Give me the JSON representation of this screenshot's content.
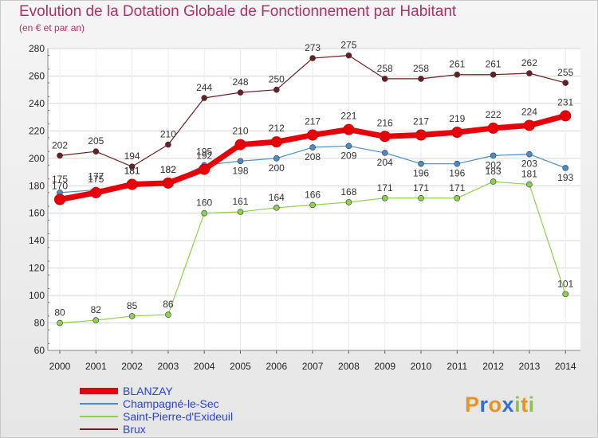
{
  "title": "Evolution de la Dotation Globale de Fonctionnement par Habitant",
  "subtitle": "(en € et par an)",
  "logo": {
    "text": "Proxiti",
    "letter_colors": [
      "#e8931f",
      "#2f6fd8",
      "#e8931f",
      "#2f6fd8",
      "#8ec73f",
      "#e8931f",
      "#8ec73f"
    ]
  },
  "chart_data": {
    "type": "line",
    "title": "Evolution de la Dotation Globale de Fonctionnement par Habitant",
    "subtitle": "(en € et par an)",
    "x": [
      "2000",
      "2001",
      "2002",
      "2003",
      "2004",
      "2005",
      "2006",
      "2007",
      "2008",
      "2009",
      "2010",
      "2011",
      "2012",
      "2013",
      "2014"
    ],
    "ylim": [
      60,
      280
    ],
    "yticks": [
      60,
      80,
      100,
      120,
      140,
      160,
      180,
      200,
      220,
      240,
      260,
      280
    ],
    "grid": true,
    "legend": "bottom-left",
    "series": [
      {
        "name": "BLANZAY",
        "color": "#e8000b",
        "emphasis": true,
        "values": [
          170,
          175,
          181,
          182,
          192,
          210,
          212,
          217,
          221,
          216,
          217,
          219,
          222,
          224,
          231
        ]
      },
      {
        "name": "Champagné-le-Sec",
        "color": "#4a8ec9",
        "values": [
          175,
          177,
          181,
          182,
          195,
          198,
          200,
          208,
          209,
          204,
          196,
          196,
          202,
          203,
          193
        ]
      },
      {
        "name": "Saint-Pierre-d'Exideuil",
        "color": "#8fd14f",
        "values": [
          80,
          82,
          85,
          86,
          160,
          161,
          164,
          166,
          168,
          171,
          171,
          171,
          183,
          181,
          101
        ]
      },
      {
        "name": "Brux",
        "color": "#6b1f22",
        "values": [
          202,
          205,
          194,
          210,
          244,
          248,
          250,
          273,
          275,
          258,
          258,
          261,
          261,
          262,
          255
        ]
      }
    ]
  }
}
